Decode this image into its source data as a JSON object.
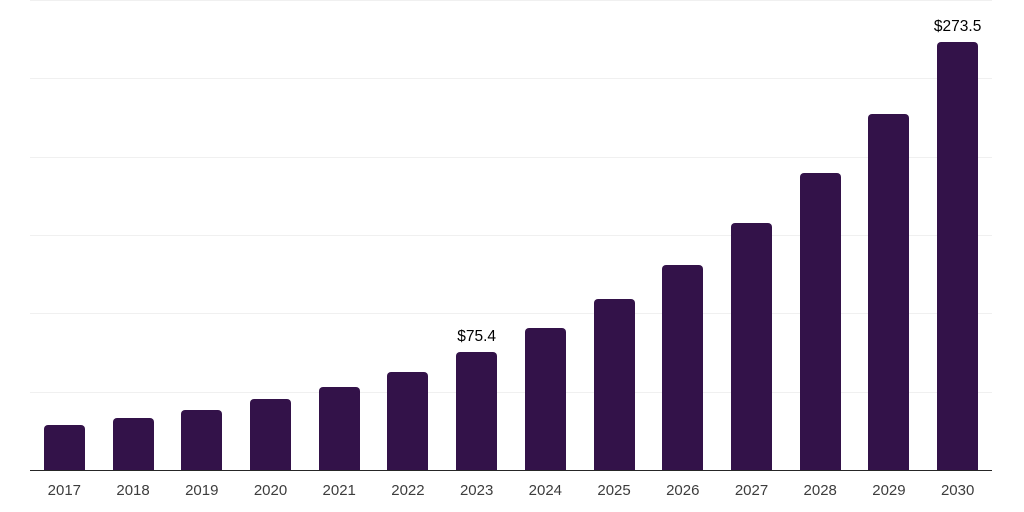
{
  "chart_data": {
    "type": "bar",
    "title": "",
    "xlabel": "",
    "ylabel": "",
    "categories": [
      "2017",
      "2018",
      "2019",
      "2020",
      "2021",
      "2022",
      "2023",
      "2024",
      "2025",
      "2026",
      "2027",
      "2028",
      "2029",
      "2030"
    ],
    "values": [
      28.5,
      33.0,
      38.3,
      45.1,
      53.2,
      62.8,
      75.4,
      90.6,
      108.9,
      131.0,
      157.4,
      189.3,
      227.5,
      273.5
    ],
    "value_labels": [
      "",
      "",
      "",
      "",
      "",
      "",
      "$75.4",
      "",
      "",
      "",
      "",
      "",
      "",
      "$273.5"
    ],
    "ylim": [
      0,
      300
    ],
    "gridline_step": 50,
    "grid": "horizontal",
    "legend": "none",
    "colors": {
      "bar": "#331249",
      "gridline": "#f0f0f0",
      "axis_line": "#262626",
      "tick_label": "#3d3d3d",
      "value_label": "#000000"
    }
  }
}
